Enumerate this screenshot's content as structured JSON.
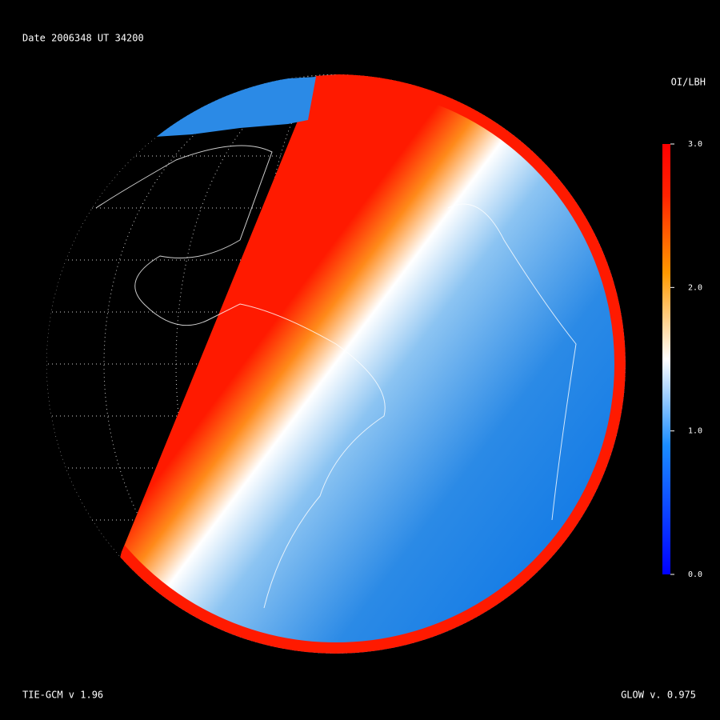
{
  "header": {
    "title": "Date 2006348  UT 34200"
  },
  "colorbar": {
    "title": "OI/LBH",
    "lim": [
      0,
      3
    ],
    "ticks": [
      {
        "value": 0,
        "label": "0.0"
      },
      {
        "value": 1,
        "label": "1.0"
      },
      {
        "value": 2,
        "label": "2.0"
      },
      {
        "value": 3,
        "label": "3.0"
      }
    ]
  },
  "footer": {
    "left": "TIE-GCM v 1.96",
    "right": "GLOW v. 0.975"
  }
}
